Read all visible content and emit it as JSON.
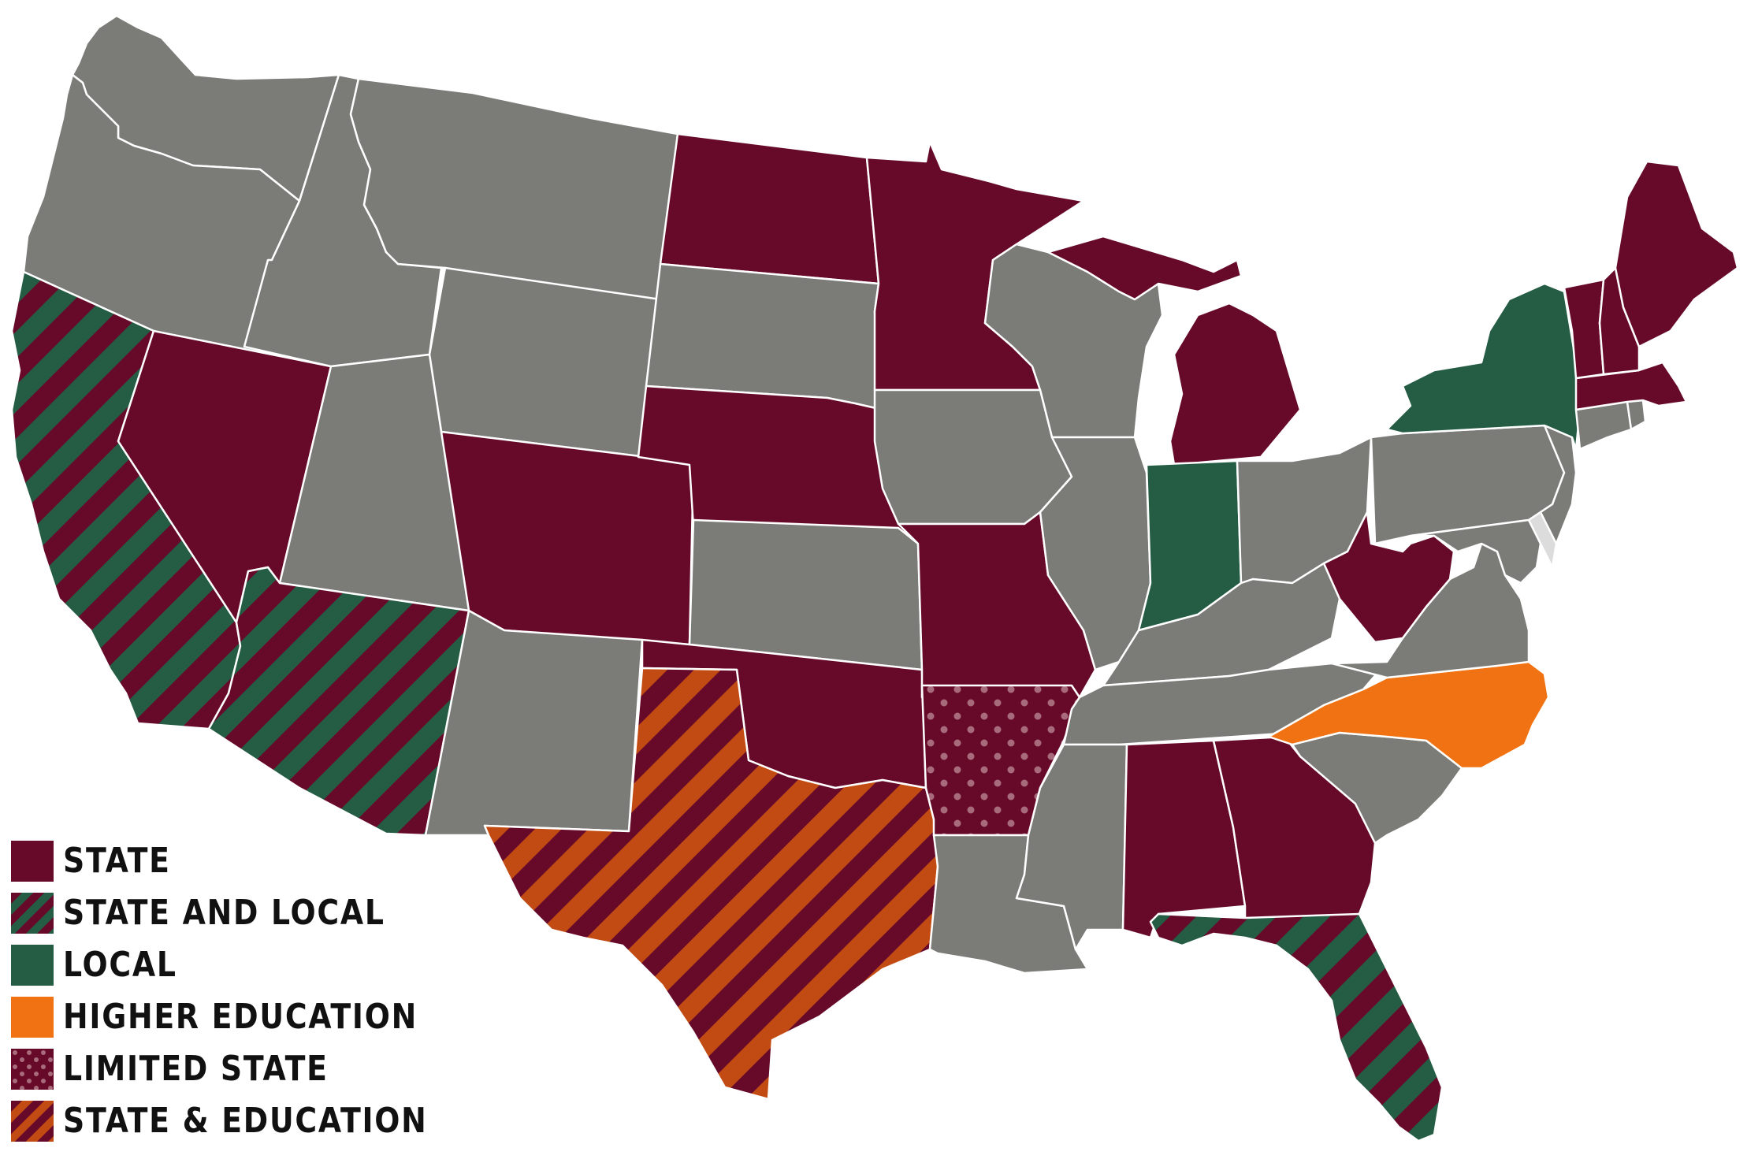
{
  "colors": {
    "state": "#670a2a",
    "local": "#245c44",
    "higher_education": "#f07212",
    "state_education_orange": "#c24b14",
    "none": "#7b7b77",
    "light": "#dcdcdc",
    "dots": "#a86b7c"
  },
  "legend": [
    {
      "key": "state",
      "label": "STATE",
      "pattern": "solid-state"
    },
    {
      "key": "state_and_local",
      "label": "STATE AND LOCAL",
      "pattern": "stripes-state-local"
    },
    {
      "key": "local",
      "label": "LOCAL",
      "pattern": "solid-local"
    },
    {
      "key": "higher_education",
      "label": "HIGHER EDUCATION",
      "pattern": "solid-higher-education"
    },
    {
      "key": "limited_state",
      "label": "LIMITED STATE",
      "pattern": "dots-state"
    },
    {
      "key": "state_education",
      "label": "STATE & EDUCATION",
      "pattern": "stripes-state-education"
    }
  ],
  "map": {
    "category_by_state": {
      "state": [
        "ND",
        "MN",
        "NV",
        "NE",
        "CO",
        "MO",
        "OK",
        "MI",
        "WV",
        "AL",
        "GA",
        "ME",
        "VT",
        "NH",
        "MA"
      ],
      "state_and_local": [
        "CA",
        "AZ",
        "FL"
      ],
      "local": [
        "NY",
        "IN"
      ],
      "higher_education": [
        "NC"
      ],
      "limited_state": [
        "AR"
      ],
      "state_education": [
        "TX"
      ],
      "none": [
        "WA",
        "OR",
        "ID",
        "MT",
        "WY",
        "UT",
        "NM",
        "SD",
        "KS",
        "IA",
        "WI",
        "IL",
        "KY",
        "TN",
        "OH",
        "PA",
        "VA",
        "MD",
        "NJ",
        "CT",
        "RI",
        "SC",
        "MS",
        "LA",
        "DE"
      ]
    }
  }
}
